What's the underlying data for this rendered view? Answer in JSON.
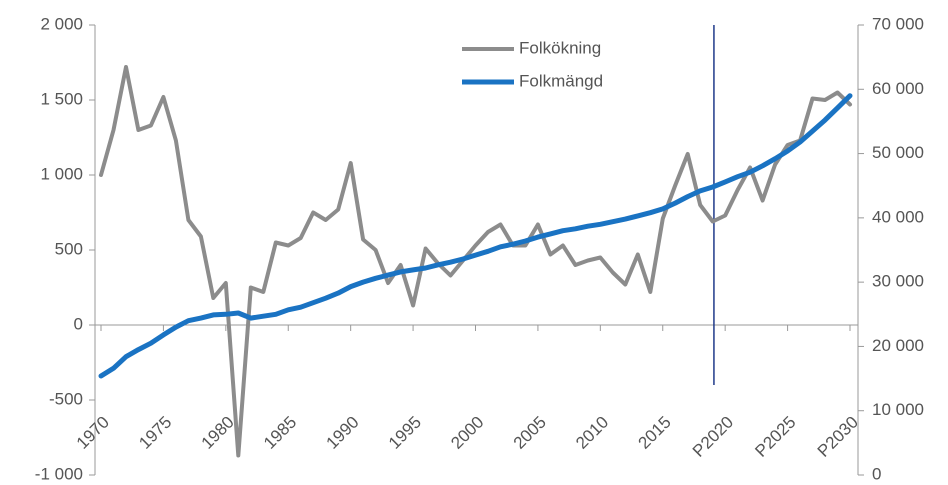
{
  "chart_data": {
    "type": "line",
    "categories": [
      "1970",
      null,
      null,
      null,
      null,
      "1975",
      null,
      null,
      null,
      null,
      "1980",
      null,
      null,
      null,
      null,
      "1985",
      null,
      null,
      null,
      null,
      "1990",
      null,
      null,
      null,
      null,
      "1995",
      null,
      null,
      null,
      null,
      "2000",
      null,
      null,
      null,
      null,
      "2005",
      null,
      null,
      null,
      null,
      "2010",
      null,
      null,
      null,
      null,
      "2015",
      null,
      null,
      null,
      null,
      "P2020",
      null,
      null,
      null,
      null,
      "P2025",
      null,
      null,
      null,
      null,
      "P2030"
    ],
    "series": [
      {
        "name": "Folkökning",
        "color": "#8c8c8c",
        "axis": "y",
        "values": [
          1000,
          1300,
          1720,
          1300,
          1330,
          1520,
          1230,
          700,
          590,
          180,
          280,
          -870,
          250,
          220,
          550,
          530,
          580,
          750,
          700,
          770,
          1080,
          570,
          500,
          280,
          400,
          130,
          510,
          410,
          330,
          430,
          530,
          620,
          670,
          530,
          530,
          670,
          470,
          530,
          400,
          430,
          450,
          350,
          270,
          470,
          220,
          710,
          930,
          1140,
          800,
          690,
          730,
          900,
          1050,
          830,
          1070,
          1200,
          1230,
          1510,
          1500,
          1550,
          1470
        ]
      },
      {
        "name": "Folkmängd",
        "color": "#1a73c3",
        "axis": "y2",
        "values": [
          15400,
          16600,
          18400,
          19500,
          20500,
          21800,
          23000,
          24000,
          24400,
          24900,
          25000,
          25200,
          24400,
          24700,
          25000,
          25700,
          26100,
          26800,
          27500,
          28300,
          29300,
          30000,
          30600,
          31100,
          31600,
          31900,
          32200,
          32700,
          33100,
          33600,
          34200,
          34800,
          35500,
          35900,
          36400,
          37000,
          37500,
          38000,
          38300,
          38700,
          39000,
          39400,
          39800,
          40300,
          40800,
          41400,
          42300,
          43300,
          44200,
          44800,
          45600,
          46400,
          47100,
          48100,
          49200,
          50400,
          51800,
          53500,
          55200,
          57100,
          59000
        ]
      }
    ],
    "ylim": [
      -1000,
      2000
    ],
    "yticks": [
      {
        "value": -1000,
        "label": "-1 000"
      },
      -500,
      0,
      500,
      {
        "value": 1000,
        "label": "1 000"
      },
      {
        "value": 1500,
        "label": "1 500"
      },
      {
        "value": 2000,
        "label": "2 000"
      }
    ],
    "y2lim": [
      0,
      70000
    ],
    "y2ticks": [
      0,
      {
        "value": 10000,
        "label": "10 000"
      },
      {
        "value": 20000,
        "label": "20 000"
      },
      {
        "value": 30000,
        "label": "30 000"
      },
      {
        "value": 40000,
        "label": "40 000"
      },
      {
        "value": 50000,
        "label": "50 000"
      },
      {
        "value": 60000,
        "label": "60 000"
      },
      {
        "value": 70000,
        "label": "70 000"
      }
    ],
    "legend": "top"
  }
}
